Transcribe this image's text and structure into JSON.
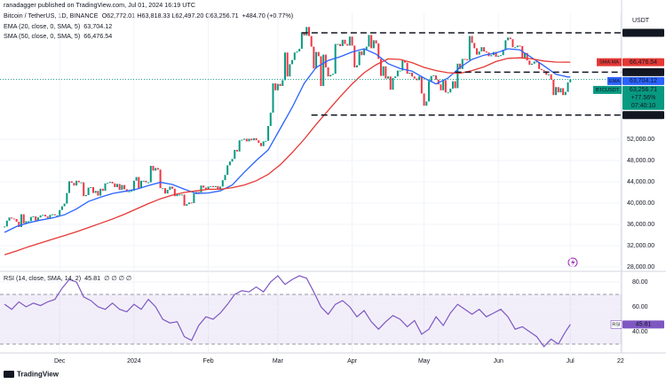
{
  "header": {
    "publisher": "ranadagger published on TradingView.com, Jul 01, 2024 16:19 UTC",
    "title": "Bitcoin / TetherUS, 1D, BINANCE",
    "ohlc": "O62,772.01 H63,818.33 L62,497.20 C63,256.71",
    "change": "+484.70 (+0.77%)"
  },
  "chart_data": [
    {
      "type": "candlestick",
      "currency": "USDT",
      "grid": true,
      "colors": {
        "up": "#089981",
        "down": "#f23645"
      },
      "closes": [
        35600,
        36700,
        37300,
        37100,
        37000,
        36500,
        35500,
        37900,
        36200,
        36600,
        36600,
        37400,
        37500,
        36700,
        37300,
        37700,
        37800,
        37500,
        37200,
        37800,
        37900,
        37700,
        37700,
        38700,
        39400,
        39900,
        41900,
        44100,
        43800,
        43300,
        44200,
        43900,
        43900,
        41300,
        41500,
        42900,
        43000,
        41900,
        42300,
        41400,
        42700,
        42300,
        43700,
        43800,
        44000,
        43700,
        43000,
        43600,
        42500,
        43400,
        42600,
        42100,
        42200,
        42300,
        44200,
        44900,
        42800,
        44200,
        44200,
        43900,
        43900,
        47000,
        46100,
        46600,
        46300,
        42800,
        42800,
        41800,
        42500,
        43100,
        42700,
        41300,
        41600,
        41600,
        41600,
        39500,
        39800,
        40100,
        40000,
        41800,
        42100,
        42000,
        43300,
        42900,
        42600,
        43100,
        43200,
        43000,
        43200,
        42600,
        43100,
        44300,
        45300,
        47100,
        47800,
        48300,
        50000,
        49700,
        51800,
        51900,
        52100,
        51600,
        52100,
        51800,
        52200,
        51800,
        51300,
        50700,
        51600,
        51700,
        54500,
        57000,
        62500,
        61200,
        62400,
        62000,
        63100,
        68300,
        63800,
        66100,
        66900,
        68300,
        68500,
        69000,
        72100,
        71500,
        73100,
        71400,
        69400,
        65300,
        68400,
        67600,
        62000,
        67900,
        65500,
        63800,
        64100,
        64300,
        69900,
        69900,
        69500,
        70700,
        69900,
        69600,
        71300,
        69600,
        65500,
        65900,
        68500,
        67800,
        68900,
        69400,
        71600,
        69100,
        70600,
        70000,
        67100,
        63900,
        65700,
        63400,
        63800,
        61300,
        63500,
        63800,
        64900,
        64900,
        66800,
        66400,
        64300,
        64500,
        63800,
        63400,
        63100,
        63800,
        60600,
        58300,
        59100,
        62900,
        63900,
        64000,
        63200,
        62300,
        61200,
        63100,
        60800,
        60800,
        61500,
        62900,
        61600,
        66200,
        65200,
        67100,
        67000,
        66900,
        71400,
        70100,
        69100,
        67900,
        68500,
        69300,
        68500,
        68300,
        67600,
        67800,
        68400,
        67500,
        67700,
        67800,
        68800,
        70600,
        71100,
        70800,
        69300,
        69300,
        69600,
        69500,
        67300,
        68200,
        66800,
        66000,
        66200,
        66600,
        66500,
        65200,
        65000,
        64800,
        64100,
        64200,
        63200,
        60300,
        61800,
        60800,
        61600,
        60300,
        60900,
        62700,
        63256.71
      ],
      "xlim": [
        -1.9,
        257.4
      ],
      "xticks": [
        {
          "value": 23,
          "label": "Dec"
        },
        {
          "value": 54,
          "label": "2024"
        },
        {
          "value": 85,
          "label": "Feb"
        },
        {
          "value": 114,
          "label": "Mar"
        },
        {
          "value": 145,
          "label": "Apr"
        },
        {
          "value": 175,
          "label": "May"
        },
        {
          "value": 206,
          "label": "Jun"
        },
        {
          "value": 236,
          "label": "Jul"
        },
        {
          "value": 257,
          "label": "22"
        }
      ],
      "ylim": [
        27333,
        75667
      ],
      "yticks": [
        {
          "value": 28000,
          "label": "28,000.00"
        },
        {
          "value": 32000,
          "label": "32,000.00"
        },
        {
          "value": 36000,
          "label": "36,000.00"
        },
        {
          "value": 40000,
          "label": "40,000.00"
        },
        {
          "value": 44000,
          "label": "44,000.00"
        },
        {
          "value": 48000,
          "label": "48,000.00"
        },
        {
          "value": 52000,
          "label": "52,000.00"
        }
      ],
      "levels": [
        {
          "value": 72000,
          "label": "72,000.00",
          "start": 124
        },
        {
          "value": 64602,
          "label": "64,602.00",
          "start": 188
        },
        {
          "value": 56552,
          "label": "56,552.00",
          "start": 128
        }
      ],
      "series": [
        {
          "name": "EMA (20, close, 0, SMA, 5)",
          "legend_value": "63,704.12",
          "tag": "EMA",
          "color": "#2962ff",
          "x": [
            0,
            5,
            10,
            15,
            20,
            25,
            30,
            35,
            40,
            45,
            50,
            55,
            60,
            65,
            70,
            75,
            80,
            85,
            90,
            95,
            100,
            105,
            110,
            115,
            120,
            125,
            130,
            135,
            140,
            145,
            150,
            155,
            160,
            165,
            170,
            175,
            180,
            185,
            190,
            195,
            200,
            205,
            210,
            215,
            220,
            225,
            230,
            235,
            236
          ],
          "values": [
            34500,
            35600,
            36300,
            36800,
            37200,
            37800,
            38900,
            40300,
            41100,
            41800,
            42200,
            42600,
            43300,
            43900,
            43500,
            42600,
            41800,
            41900,
            42300,
            43400,
            45800,
            48000,
            50000,
            54000,
            58000,
            62500,
            65500,
            66800,
            67500,
            68400,
            69000,
            68000,
            66200,
            65300,
            64800,
            63500,
            62400,
            63500,
            65500,
            67000,
            67800,
            68200,
            69000,
            68800,
            67300,
            65800,
            64200,
            63700,
            63704.12
          ]
        },
        {
          "name": "SMA (50, close, 0, SMA, 5)",
          "legend_value": "66,476.54",
          "tag": "SMA:MA",
          "color": "#e53935",
          "x": [
            0,
            5,
            10,
            15,
            20,
            25,
            30,
            35,
            40,
            45,
            50,
            55,
            60,
            65,
            70,
            75,
            80,
            85,
            90,
            95,
            100,
            105,
            110,
            115,
            120,
            125,
            130,
            135,
            140,
            145,
            150,
            155,
            160,
            165,
            170,
            175,
            180,
            185,
            190,
            195,
            200,
            205,
            210,
            215,
            220,
            225,
            230,
            235,
            236
          ],
          "values": [
            30300,
            31000,
            31800,
            32500,
            33200,
            33900,
            34600,
            35400,
            36200,
            37000,
            37900,
            38900,
            39900,
            40800,
            41500,
            42000,
            42300,
            42600,
            42600,
            42900,
            43400,
            44200,
            45400,
            47200,
            49500,
            52000,
            54800,
            57400,
            60000,
            62400,
            64500,
            66000,
            67100,
            67000,
            66400,
            65500,
            64900,
            64500,
            64400,
            64900,
            65600,
            66600,
            67200,
            67300,
            67100,
            66700,
            66500,
            66480,
            66476.54
          ]
        }
      ],
      "last": {
        "value": 63256.71,
        "label": "63,256.71",
        "change": "+77.56%",
        "countdown": "07:40:10",
        "tag": "BTCUSDT",
        "color": "#089981"
      }
    },
    {
      "type": "line",
      "name": "RSI (14, close, SMA, 14, 2)",
      "legend_value": "45.81",
      "extra": "∅ ∅ ∅ ∅",
      "tag": "RSI",
      "color": "#7e57c2",
      "x": [
        0,
        3,
        6,
        9,
        12,
        15,
        18,
        21,
        24,
        27,
        30,
        33,
        36,
        39,
        42,
        45,
        48,
        51,
        54,
        57,
        60,
        63,
        66,
        69,
        72,
        75,
        78,
        81,
        84,
        87,
        90,
        93,
        96,
        99,
        102,
        105,
        108,
        111,
        114,
        117,
        120,
        123,
        126,
        129,
        132,
        135,
        138,
        141,
        144,
        147,
        150,
        153,
        156,
        159,
        162,
        165,
        168,
        171,
        174,
        177,
        180,
        183,
        186,
        189,
        192,
        195,
        198,
        201,
        204,
        207,
        210,
        213,
        216,
        219,
        222,
        225,
        228,
        231,
        234,
        236
      ],
      "values": [
        62,
        58,
        64,
        60,
        63,
        61,
        64,
        66,
        75,
        82,
        80,
        68,
        65,
        60,
        58,
        63,
        58,
        56,
        62,
        58,
        66,
        60,
        50,
        47,
        48,
        36,
        33,
        45,
        52,
        50,
        55,
        62,
        70,
        73,
        72,
        76,
        72,
        80,
        85,
        78,
        82,
        85,
        83,
        72,
        60,
        54,
        62,
        65,
        60,
        52,
        57,
        48,
        42,
        48,
        53,
        50,
        44,
        49,
        38,
        42,
        52,
        45,
        55,
        62,
        58,
        54,
        58,
        52,
        55,
        58,
        52,
        42,
        44,
        40,
        36,
        28,
        34,
        30,
        40,
        45.81
      ],
      "ylim": [
        23.6,
        87.1
      ],
      "yticks": [
        {
          "value": 40,
          "label": "40.00"
        },
        {
          "value": 60,
          "label": "60.00"
        },
        {
          "value": 80,
          "label": "80.00"
        }
      ],
      "bands": [
        70,
        30
      ]
    }
  ],
  "footer": "TradingView"
}
